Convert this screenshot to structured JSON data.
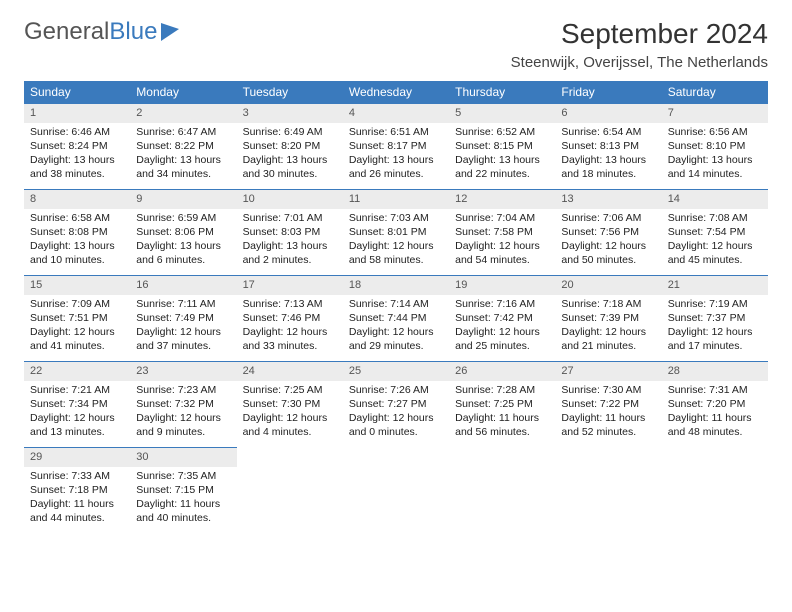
{
  "logo": {
    "text1": "General",
    "text2": "Blue"
  },
  "title": "September 2024",
  "location": "Steenwijk, Overijssel, The Netherlands",
  "colors": {
    "header_bg": "#3a7abd",
    "header_text": "#ffffff",
    "daynum_bg": "#ececec",
    "border": "#3a7abd",
    "body_text": "#222222",
    "page_bg": "#ffffff"
  },
  "day_headers": [
    "Sunday",
    "Monday",
    "Tuesday",
    "Wednesday",
    "Thursday",
    "Friday",
    "Saturday"
  ],
  "weeks": [
    [
      {
        "n": "1",
        "sr": "6:46 AM",
        "ss": "8:24 PM",
        "dl": "13 hours and 38 minutes."
      },
      {
        "n": "2",
        "sr": "6:47 AM",
        "ss": "8:22 PM",
        "dl": "13 hours and 34 minutes."
      },
      {
        "n": "3",
        "sr": "6:49 AM",
        "ss": "8:20 PM",
        "dl": "13 hours and 30 minutes."
      },
      {
        "n": "4",
        "sr": "6:51 AM",
        "ss": "8:17 PM",
        "dl": "13 hours and 26 minutes."
      },
      {
        "n": "5",
        "sr": "6:52 AM",
        "ss": "8:15 PM",
        "dl": "13 hours and 22 minutes."
      },
      {
        "n": "6",
        "sr": "6:54 AM",
        "ss": "8:13 PM",
        "dl": "13 hours and 18 minutes."
      },
      {
        "n": "7",
        "sr": "6:56 AM",
        "ss": "8:10 PM",
        "dl": "13 hours and 14 minutes."
      }
    ],
    [
      {
        "n": "8",
        "sr": "6:58 AM",
        "ss": "8:08 PM",
        "dl": "13 hours and 10 minutes."
      },
      {
        "n": "9",
        "sr": "6:59 AM",
        "ss": "8:06 PM",
        "dl": "13 hours and 6 minutes."
      },
      {
        "n": "10",
        "sr": "7:01 AM",
        "ss": "8:03 PM",
        "dl": "13 hours and 2 minutes."
      },
      {
        "n": "11",
        "sr": "7:03 AM",
        "ss": "8:01 PM",
        "dl": "12 hours and 58 minutes."
      },
      {
        "n": "12",
        "sr": "7:04 AM",
        "ss": "7:58 PM",
        "dl": "12 hours and 54 minutes."
      },
      {
        "n": "13",
        "sr": "7:06 AM",
        "ss": "7:56 PM",
        "dl": "12 hours and 50 minutes."
      },
      {
        "n": "14",
        "sr": "7:08 AM",
        "ss": "7:54 PM",
        "dl": "12 hours and 45 minutes."
      }
    ],
    [
      {
        "n": "15",
        "sr": "7:09 AM",
        "ss": "7:51 PM",
        "dl": "12 hours and 41 minutes."
      },
      {
        "n": "16",
        "sr": "7:11 AM",
        "ss": "7:49 PM",
        "dl": "12 hours and 37 minutes."
      },
      {
        "n": "17",
        "sr": "7:13 AM",
        "ss": "7:46 PM",
        "dl": "12 hours and 33 minutes."
      },
      {
        "n": "18",
        "sr": "7:14 AM",
        "ss": "7:44 PM",
        "dl": "12 hours and 29 minutes."
      },
      {
        "n": "19",
        "sr": "7:16 AM",
        "ss": "7:42 PM",
        "dl": "12 hours and 25 minutes."
      },
      {
        "n": "20",
        "sr": "7:18 AM",
        "ss": "7:39 PM",
        "dl": "12 hours and 21 minutes."
      },
      {
        "n": "21",
        "sr": "7:19 AM",
        "ss": "7:37 PM",
        "dl": "12 hours and 17 minutes."
      }
    ],
    [
      {
        "n": "22",
        "sr": "7:21 AM",
        "ss": "7:34 PM",
        "dl": "12 hours and 13 minutes."
      },
      {
        "n": "23",
        "sr": "7:23 AM",
        "ss": "7:32 PM",
        "dl": "12 hours and 9 minutes."
      },
      {
        "n": "24",
        "sr": "7:25 AM",
        "ss": "7:30 PM",
        "dl": "12 hours and 4 minutes."
      },
      {
        "n": "25",
        "sr": "7:26 AM",
        "ss": "7:27 PM",
        "dl": "12 hours and 0 minutes."
      },
      {
        "n": "26",
        "sr": "7:28 AM",
        "ss": "7:25 PM",
        "dl": "11 hours and 56 minutes."
      },
      {
        "n": "27",
        "sr": "7:30 AM",
        "ss": "7:22 PM",
        "dl": "11 hours and 52 minutes."
      },
      {
        "n": "28",
        "sr": "7:31 AM",
        "ss": "7:20 PM",
        "dl": "11 hours and 48 minutes."
      }
    ],
    [
      {
        "n": "29",
        "sr": "7:33 AM",
        "ss": "7:18 PM",
        "dl": "11 hours and 44 minutes."
      },
      {
        "n": "30",
        "sr": "7:35 AM",
        "ss": "7:15 PM",
        "dl": "11 hours and 40 minutes."
      },
      null,
      null,
      null,
      null,
      null
    ]
  ],
  "labels": {
    "sunrise": "Sunrise: ",
    "sunset": "Sunset: ",
    "daylight": "Daylight: "
  }
}
